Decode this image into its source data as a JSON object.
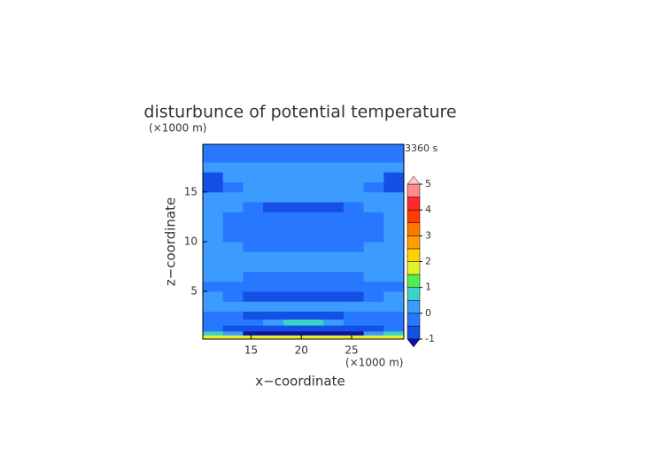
{
  "chart_data": {
    "type": "contour",
    "title": "disturbunce of potential temperature",
    "x_unit": "(×1000 m)",
    "y_unit": "(×1000 m)",
    "xlabel": "x−coordinate",
    "ylabel": "z−coordinate",
    "annotation": "3360 s",
    "xlim": [
      10.2,
      30.2
    ],
    "ylim": [
      0.2,
      19.8
    ],
    "xticks": [
      15,
      20,
      25
    ],
    "yticks": [
      5,
      10,
      15
    ],
    "xedges": [
      10.2,
      12.2,
      14.2,
      16.2,
      18.2,
      20.2,
      22.2,
      24.2,
      26.2,
      28.2,
      30.2
    ],
    "yedges": [
      0.2,
      0.6,
      1.0,
      1.6,
      2.2,
      3,
      4,
      5,
      6,
      7,
      8,
      9,
      10,
      11,
      12,
      13,
      14,
      15,
      16,
      17,
      18,
      19,
      19.8
    ],
    "z": [
      [
        1.7,
        1.7,
        1.7,
        1.7,
        1.7,
        1.7,
        1.7,
        1.7,
        1.7,
        1.7
      ],
      [
        0.8,
        0.3,
        -1.2,
        -1.2,
        -1.2,
        -1.2,
        -1.2,
        -1.2,
        0.3,
        0.8
      ],
      [
        -0.3,
        -0.7,
        -0.7,
        -0.7,
        -0.7,
        -0.7,
        -0.7,
        -0.7,
        -0.7,
        -0.3
      ],
      [
        -0.2,
        -0.2,
        -0.2,
        0.2,
        0.6,
        0.6,
        0.2,
        -0.2,
        -0.2,
        -0.2
      ],
      [
        -0.3,
        -0.3,
        -0.6,
        -0.6,
        -0.6,
        -0.6,
        -0.6,
        -0.3,
        -0.3,
        -0.3
      ],
      [
        0.1,
        0.1,
        0.1,
        0.1,
        0.1,
        0.1,
        0.1,
        0.1,
        0.1,
        0.1
      ],
      [
        0.1,
        -0.3,
        -0.6,
        -0.6,
        -0.6,
        -0.6,
        -0.6,
        -0.6,
        -0.3,
        0.1
      ],
      [
        -0.3,
        -0.3,
        -0.3,
        -0.3,
        -0.3,
        -0.3,
        -0.3,
        -0.3,
        -0.3,
        -0.3
      ],
      [
        0.1,
        0.1,
        -0.3,
        -0.3,
        -0.3,
        -0.3,
        -0.3,
        -0.3,
        0.1,
        0.1
      ],
      [
        0.1,
        0.1,
        0.1,
        0.1,
        0.1,
        0.1,
        0.1,
        0.1,
        0.1,
        0.1
      ],
      [
        0.1,
        0.1,
        0.1,
        0.1,
        0.1,
        0.1,
        0.1,
        0.1,
        0.1,
        0.1
      ],
      [
        0.1,
        0.1,
        -0.3,
        -0.3,
        -0.3,
        -0.3,
        -0.3,
        -0.3,
        0.1,
        0.1
      ],
      [
        0.1,
        -0.3,
        -0.3,
        -0.3,
        -0.3,
        -0.3,
        -0.3,
        -0.3,
        -0.3,
        0.1
      ],
      [
        0.1,
        -0.3,
        -0.3,
        -0.3,
        -0.3,
        -0.3,
        -0.3,
        -0.3,
        -0.3,
        0.1
      ],
      [
        0.1,
        -0.3,
        -0.3,
        -0.3,
        -0.3,
        -0.3,
        -0.3,
        -0.3,
        -0.3,
        0.1
      ],
      [
        0.1,
        0.1,
        -0.3,
        -0.6,
        -0.6,
        -0.6,
        -0.6,
        -0.3,
        0.1,
        0.1
      ],
      [
        0.1,
        0.1,
        0.1,
        0.1,
        0.1,
        0.1,
        0.1,
        0.1,
        0.1,
        0.1
      ],
      [
        -0.6,
        -0.3,
        0.1,
        0.1,
        0.1,
        0.1,
        0.1,
        0.1,
        -0.3,
        -0.6
      ],
      [
        -0.6,
        0.1,
        0.1,
        0.1,
        0.1,
        0.1,
        0.1,
        0.1,
        0.1,
        -0.6
      ],
      [
        0.1,
        0.1,
        0.1,
        0.1,
        0.1,
        0.1,
        0.1,
        0.1,
        0.1,
        0.1
      ],
      [
        -0.3,
        -0.3,
        -0.3,
        -0.3,
        -0.3,
        -0.3,
        -0.3,
        -0.3,
        -0.3,
        -0.3
      ],
      [
        -0.3,
        -0.3,
        -0.3,
        -0.3,
        -0.3,
        -0.3,
        -0.3,
        -0.3,
        -0.3,
        -0.3
      ]
    ],
    "levels": [
      -1,
      -0.5,
      0,
      0.5,
      1,
      1.5,
      2,
      2.5,
      3,
      3.5,
      4,
      4.5,
      5
    ],
    "colors": [
      "#0a14a0",
      "#1450e6",
      "#2878ff",
      "#3c9bff",
      "#3cd2c8",
      "#50f050",
      "#e6f028",
      "#ffd200",
      "#ffa000",
      "#ff7800",
      "#ff3c00",
      "#ff2828",
      "#ff8c8c",
      "#ffc8c8"
    ],
    "colorbar_ticks": [
      -1,
      0,
      1,
      2,
      3,
      4,
      5
    ]
  }
}
